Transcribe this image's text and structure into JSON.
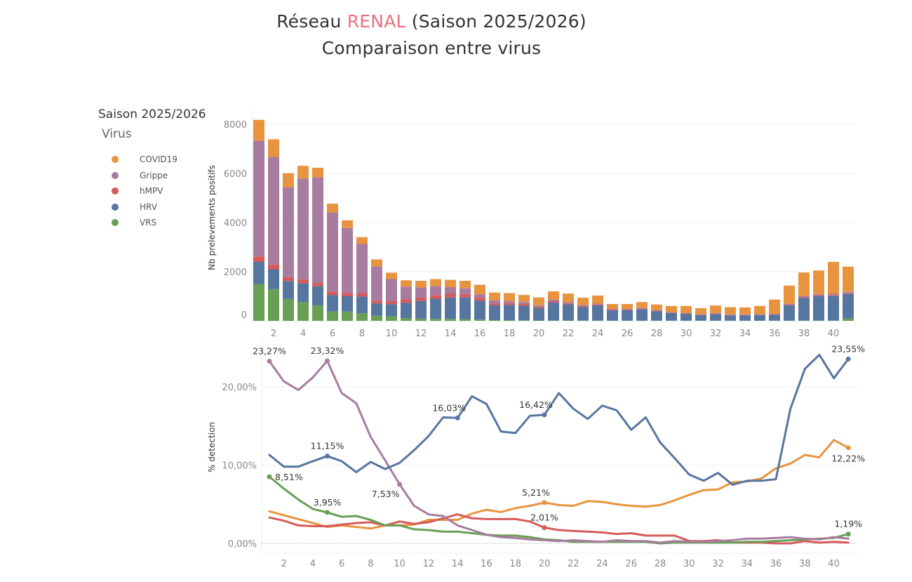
{
  "header": {
    "title_prefix": "Réseau ",
    "title_accent": "RENAL",
    "title_suffix": " (Saison 2025/2026)",
    "subtitle": "Comparaison entre virus",
    "accent_color": "#e8707e"
  },
  "legend": {
    "season": "Saison 2025/2026",
    "title": "Virus",
    "items": [
      {
        "label": "COVID19",
        "color": "#e8943f"
      },
      {
        "label": "Grippe",
        "color": "#a77c9f"
      },
      {
        "label": "hMPV",
        "color": "#d65a5a"
      },
      {
        "label": "HRV",
        "color": "#56759f"
      },
      {
        "label": "VRS",
        "color": "#689f55"
      }
    ]
  },
  "chart_data": [
    {
      "type": "bar",
      "stacked": true,
      "ylabel": "Nb prelevements positifs",
      "xlabel": "",
      "ylim": [
        0,
        8000
      ],
      "yticks": [
        "0",
        "2000",
        "4000",
        "6000",
        "8000"
      ],
      "xticks": [
        "2",
        "4",
        "6",
        "8",
        "10",
        "12",
        "14",
        "16",
        "18",
        "20",
        "22",
        "24",
        "26",
        "28",
        "30",
        "32",
        "34",
        "36",
        "38",
        "40"
      ],
      "grid": true,
      "x": [
        1,
        2,
        3,
        4,
        5,
        6,
        7,
        8,
        9,
        10,
        11,
        12,
        13,
        14,
        15,
        16,
        17,
        18,
        19,
        20,
        21,
        22,
        23,
        24,
        25,
        26,
        27,
        28,
        29,
        30,
        31,
        32,
        33,
        34,
        35,
        36,
        37,
        38,
        39,
        40,
        41
      ],
      "series": [
        {
          "name": "VRS",
          "color": "#689f55",
          "values": [
            1490,
            1290,
            890,
            760,
            620,
            380,
            380,
            310,
            210,
            180,
            110,
            90,
            80,
            80,
            70,
            50,
            30,
            30,
            25,
            15,
            10,
            10,
            10,
            10,
            5,
            5,
            5,
            5,
            5,
            5,
            5,
            5,
            5,
            5,
            5,
            5,
            5,
            10,
            10,
            10,
            90
          ]
        },
        {
          "name": "HRV",
          "color": "#56759f",
          "values": [
            910,
            810,
            730,
            770,
            790,
            670,
            620,
            680,
            500,
            500,
            620,
            720,
            820,
            870,
            880,
            770,
            600,
            620,
            590,
            510,
            740,
            660,
            550,
            620,
            420,
            430,
            470,
            390,
            310,
            280,
            230,
            270,
            220,
            220,
            230,
            240,
            630,
            920,
            1000,
            1000,
            1000
          ]
        },
        {
          "name": "hMPV",
          "color": "#d65a5a",
          "values": [
            220,
            190,
            160,
            160,
            130,
            140,
            130,
            140,
            110,
            120,
            140,
            130,
            140,
            150,
            140,
            120,
            80,
            70,
            70,
            50,
            50,
            40,
            40,
            30,
            30,
            20,
            20,
            20,
            20,
            20,
            20,
            20,
            10,
            10,
            10,
            10,
            20,
            30,
            30,
            30,
            30
          ]
        },
        {
          "name": "Grippe",
          "color": "#a77c9f",
          "values": [
            4710,
            4380,
            3650,
            4100,
            4300,
            3220,
            2650,
            2000,
            1400,
            900,
            520,
            420,
            380,
            270,
            230,
            140,
            120,
            90,
            80,
            60,
            60,
            50,
            40,
            40,
            30,
            30,
            30,
            20,
            20,
            20,
            20,
            20,
            20,
            30,
            30,
            30,
            40,
            50,
            50,
            60,
            60
          ]
        },
        {
          "name": "COVID19",
          "color": "#e8943f",
          "values": [
            850,
            720,
            580,
            520,
            390,
            360,
            310,
            280,
            280,
            260,
            260,
            270,
            280,
            300,
            310,
            390,
            320,
            320,
            290,
            320,
            340,
            350,
            300,
            330,
            200,
            200,
            240,
            230,
            250,
            280,
            240,
            310,
            300,
            280,
            330,
            580,
            740,
            960,
            960,
            1300,
            1030
          ]
        }
      ]
    },
    {
      "type": "line",
      "ylabel": "% detection",
      "xlabel": "",
      "ylim": [
        0,
        25
      ],
      "yticks": [
        "0,00%",
        "10,00%",
        "20,00%"
      ],
      "xticks": [
        "2",
        "4",
        "6",
        "8",
        "10",
        "12",
        "14",
        "16",
        "18",
        "20",
        "22",
        "24",
        "26",
        "28",
        "30",
        "32",
        "34",
        "36",
        "38",
        "40"
      ],
      "grid": true,
      "x": [
        1,
        2,
        3,
        4,
        5,
        6,
        7,
        8,
        9,
        10,
        11,
        12,
        13,
        14,
        15,
        16,
        17,
        18,
        19,
        20,
        21,
        22,
        23,
        24,
        25,
        26,
        27,
        28,
        29,
        30,
        31,
        32,
        33,
        34,
        35,
        36,
        37,
        38,
        39,
        40,
        41
      ],
      "series": [
        {
          "name": "COVID19",
          "color": "#e8943f",
          "values": [
            4.1,
            3.6,
            3.1,
            2.6,
            2.1,
            2.3,
            2.1,
            1.9,
            2.3,
            2.3,
            2.4,
            3.0,
            3.0,
            3.0,
            3.8,
            4.3,
            4.0,
            4.5,
            4.8,
            5.21,
            4.9,
            4.8,
            5.4,
            5.3,
            5.0,
            4.8,
            4.7,
            4.9,
            5.5,
            6.2,
            6.8,
            6.9,
            7.8,
            7.9,
            8.3,
            9.6,
            10.2,
            11.3,
            11.0,
            13.2,
            12.22
          ]
        },
        {
          "name": "Grippe",
          "color": "#a77c9f",
          "values": [
            23.27,
            20.7,
            19.6,
            21.2,
            23.32,
            19.2,
            17.9,
            13.6,
            10.6,
            7.53,
            4.8,
            3.7,
            3.5,
            2.3,
            1.7,
            1.1,
            0.8,
            0.7,
            0.5,
            0.4,
            0.3,
            0.4,
            0.3,
            0.2,
            0.4,
            0.3,
            0.3,
            0.1,
            0.3,
            0.2,
            0.2,
            0.3,
            0.4,
            0.6,
            0.6,
            0.7,
            0.8,
            0.6,
            0.5,
            0.8,
            0.6
          ]
        },
        {
          "name": "hMPV",
          "color": "#d65a5a",
          "values": [
            3.3,
            2.9,
            2.3,
            2.2,
            2.2,
            2.4,
            2.6,
            2.7,
            2.3,
            2.8,
            2.5,
            2.7,
            3.2,
            3.7,
            3.2,
            3.1,
            3.1,
            3.1,
            2.8,
            2.01,
            1.7,
            1.6,
            1.5,
            1.4,
            1.2,
            1.3,
            1.0,
            1.0,
            1.0,
            0.3,
            0.3,
            0.4,
            0.1,
            0.1,
            0.1,
            0.0,
            0.0,
            0.3,
            0.1,
            0.2,
            0.1
          ]
        },
        {
          "name": "HRV",
          "color": "#56759f",
          "values": [
            11.3,
            9.8,
            9.8,
            10.5,
            11.15,
            10.5,
            9.1,
            10.4,
            9.5,
            10.3,
            11.9,
            13.7,
            16.1,
            16.03,
            18.8,
            17.8,
            14.3,
            14.1,
            16.3,
            16.42,
            19.2,
            17.2,
            15.9,
            17.6,
            17.0,
            14.5,
            16.1,
            12.9,
            10.9,
            8.8,
            8.0,
            9.0,
            7.5,
            8.0,
            8.0,
            8.2,
            17.2,
            22.3,
            24.1,
            21.1,
            23.55
          ]
        },
        {
          "name": "VRS",
          "color": "#689f55",
          "values": [
            8.51,
            7.0,
            5.6,
            4.4,
            3.95,
            3.4,
            3.5,
            3.0,
            2.3,
            2.3,
            1.8,
            1.7,
            1.5,
            1.5,
            1.3,
            1.1,
            1.0,
            1.0,
            0.8,
            0.5,
            0.4,
            0.2,
            0.2,
            0.2,
            0.2,
            0.2,
            0.2,
            0.0,
            0.1,
            0.1,
            0.1,
            0.1,
            0.1,
            0.2,
            0.2,
            0.3,
            0.4,
            0.5,
            0.6,
            0.7,
            1.19
          ]
        }
      ],
      "annotations": [
        {
          "series": "Grippe",
          "x": 1,
          "label": "23,27%",
          "pos": "above"
        },
        {
          "series": "Grippe",
          "x": 5,
          "label": "23,32%",
          "pos": "above"
        },
        {
          "series": "Grippe",
          "x": 10,
          "label": "7,53%",
          "pos": "below-left"
        },
        {
          "series": "HRV",
          "x": 5,
          "label": "11,15%",
          "pos": "above"
        },
        {
          "series": "HRV",
          "x": 14,
          "label": "16,03%",
          "pos": "above-left"
        },
        {
          "series": "HRV",
          "x": 20,
          "label": "16,42%",
          "pos": "above-left"
        },
        {
          "series": "HRV",
          "x": 41,
          "label": "23,55%",
          "pos": "above"
        },
        {
          "series": "COVID19",
          "x": 20,
          "label": "5,21%",
          "pos": "above-left"
        },
        {
          "series": "COVID19",
          "x": 41,
          "label": "12,22%",
          "pos": "below"
        },
        {
          "series": "hMPV",
          "x": 20,
          "label": "2,01%",
          "pos": "above"
        },
        {
          "series": "VRS",
          "x": 1,
          "label": "8,51%",
          "pos": "right"
        },
        {
          "series": "VRS",
          "x": 5,
          "label": "3,95%",
          "pos": "above"
        },
        {
          "series": "VRS",
          "x": 41,
          "label": "1,19%",
          "pos": "above"
        }
      ]
    }
  ]
}
